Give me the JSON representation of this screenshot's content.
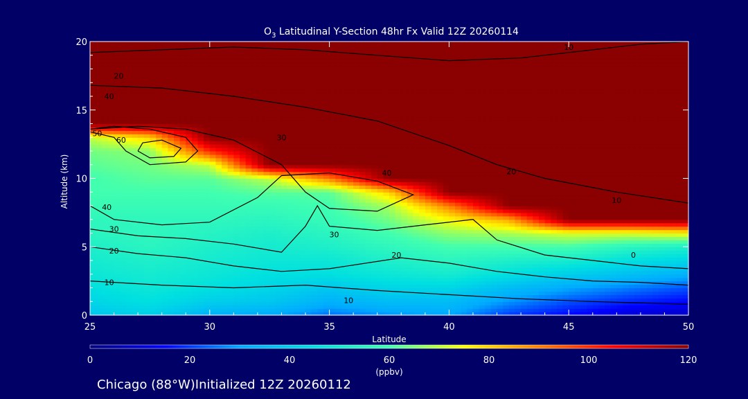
{
  "chart_data": {
    "type": "heatmap",
    "title": "O",
    "title_subscript": "3",
    "title_rest": " Latitudinal Y-Section 48hr  Fx Valid 12Z 20260114",
    "xlabel": "Latitude",
    "ylabel": "Altitude (km)",
    "xlim": [
      25,
      50
    ],
    "ylim": [
      0,
      20
    ],
    "xticks": [
      25,
      30,
      35,
      40,
      45,
      50
    ],
    "yticks": [
      0,
      5,
      10,
      15,
      20
    ],
    "colorbar": {
      "ticks": [
        0,
        20,
        40,
        60,
        80,
        100,
        120
      ],
      "min": 0,
      "max": 120,
      "unit_label": "(ppbv)",
      "colors": [
        "#000080",
        "#0000ff",
        "#00aaff",
        "#00e0e0",
        "#40ffb0",
        "#ffff00",
        "#ff8000",
        "#ff0000",
        "#8b0000"
      ]
    },
    "field": {
      "x": [
        25,
        27.5,
        30,
        32.5,
        35,
        37.5,
        40,
        42.5,
        45,
        47.5,
        50
      ],
      "y": [
        0,
        1,
        2,
        3,
        4,
        5,
        6,
        7,
        8,
        9,
        10,
        11,
        12,
        13,
        14,
        15,
        16,
        17,
        18,
        19,
        20
      ],
      "z": [
        [
          38,
          40,
          32,
          30,
          25,
          28,
          30,
          20,
          15,
          10,
          8
        ],
        [
          42,
          45,
          40,
          38,
          32,
          35,
          35,
          28,
          22,
          18,
          15
        ],
        [
          45,
          48,
          45,
          42,
          38,
          42,
          42,
          35,
          30,
          26,
          22
        ],
        [
          48,
          50,
          48,
          45,
          45,
          48,
          50,
          45,
          40,
          36,
          32
        ],
        [
          50,
          52,
          50,
          48,
          48,
          52,
          55,
          52,
          50,
          45,
          42
        ],
        [
          52,
          55,
          52,
          50,
          52,
          56,
          60,
          60,
          60,
          55,
          52
        ],
        [
          55,
          56,
          54,
          52,
          55,
          60,
          66,
          68,
          72,
          72,
          75
        ],
        [
          56,
          56,
          56,
          55,
          58,
          64,
          75,
          85,
          120,
          120,
          120
        ],
        [
          58,
          58,
          58,
          58,
          60,
          68,
          90,
          120,
          120,
          120,
          120
        ],
        [
          60,
          60,
          60,
          62,
          62,
          80,
          120,
          120,
          120,
          120,
          120
        ],
        [
          60,
          62,
          62,
          70,
          90,
          120,
          120,
          120,
          120,
          120,
          120
        ],
        [
          62,
          64,
          70,
          120,
          120,
          120,
          120,
          120,
          120,
          120,
          120
        ],
        [
          64,
          66,
          100,
          120,
          120,
          120,
          120,
          120,
          120,
          120,
          120
        ],
        [
          70,
          80,
          120,
          120,
          120,
          120,
          120,
          120,
          120,
          120,
          120
        ],
        [
          120,
          120,
          120,
          120,
          120,
          120,
          120,
          120,
          120,
          120,
          120
        ],
        [
          120,
          120,
          120,
          120,
          120,
          120,
          120,
          120,
          120,
          120,
          120
        ],
        [
          120,
          120,
          120,
          120,
          120,
          120,
          120,
          120,
          120,
          120,
          120
        ],
        [
          120,
          120,
          120,
          120,
          120,
          120,
          120,
          120,
          120,
          120,
          120
        ],
        [
          120,
          120,
          120,
          120,
          120,
          120,
          120,
          120,
          120,
          120,
          120
        ],
        [
          120,
          120,
          120,
          120,
          120,
          120,
          120,
          120,
          120,
          120,
          120
        ],
        [
          120,
          120,
          120,
          120,
          120,
          120,
          120,
          120,
          120,
          120,
          120
        ]
      ]
    },
    "contours": [
      {
        "label": "10",
        "points": [
          [
            25,
            2.5
          ],
          [
            28,
            2.2
          ],
          [
            31,
            2.0
          ],
          [
            34,
            2.2
          ],
          [
            37,
            1.8
          ],
          [
            40,
            1.5
          ],
          [
            43,
            1.2
          ],
          [
            46,
            1.0
          ],
          [
            50,
            0.8
          ]
        ]
      },
      {
        "label": "20",
        "points": [
          [
            25,
            5.0
          ],
          [
            27,
            4.5
          ],
          [
            29,
            4.2
          ],
          [
            31,
            3.6
          ],
          [
            33,
            3.2
          ],
          [
            35,
            3.4
          ],
          [
            38,
            4.2
          ],
          [
            40,
            3.8
          ],
          [
            42,
            3.2
          ],
          [
            44,
            2.8
          ],
          [
            46,
            2.5
          ],
          [
            48,
            2.4
          ],
          [
            50,
            2.2
          ]
        ]
      },
      {
        "label": "30",
        "points": [
          [
            25,
            6.3
          ],
          [
            27,
            5.8
          ],
          [
            29,
            5.6
          ],
          [
            31,
            5.2
          ],
          [
            33,
            4.6
          ],
          [
            34,
            6.5
          ],
          [
            34.5,
            8.0
          ],
          [
            35,
            6.5
          ],
          [
            37,
            6.2
          ],
          [
            39,
            6.6
          ],
          [
            41,
            7.0
          ],
          [
            42,
            5.5
          ],
          [
            44,
            4.4
          ],
          [
            46,
            4.0
          ],
          [
            48,
            3.6
          ],
          [
            50,
            3.4
          ]
        ]
      },
      {
        "label": "40",
        "points": [
          [
            25,
            8.0
          ],
          [
            26,
            7.0
          ],
          [
            28,
            6.6
          ],
          [
            30,
            6.8
          ],
          [
            32,
            8.6
          ],
          [
            33,
            10.2
          ],
          [
            35,
            10.4
          ],
          [
            37,
            9.8
          ],
          [
            38.5,
            8.8
          ],
          [
            37,
            7.6
          ],
          [
            35,
            7.8
          ],
          [
            34,
            9.0
          ],
          [
            33,
            11.0
          ],
          [
            31,
            12.8
          ],
          [
            29,
            13.6
          ],
          [
            27,
            13.8
          ],
          [
            25,
            13.6
          ]
        ]
      },
      {
        "label": "50",
        "points": [
          [
            25,
            13.4
          ],
          [
            26,
            13.0
          ],
          [
            26.5,
            12.0
          ],
          [
            27.5,
            11.0
          ],
          [
            29,
            11.2
          ],
          [
            29.5,
            12.0
          ],
          [
            29,
            13.0
          ],
          [
            27.5,
            13.6
          ],
          [
            26,
            13.8
          ],
          [
            25,
            13.6
          ]
        ]
      },
      {
        "label": "60",
        "points": [
          [
            27,
            12.0
          ],
          [
            27.5,
            11.5
          ],
          [
            28.5,
            11.6
          ],
          [
            28.8,
            12.2
          ],
          [
            28,
            12.8
          ],
          [
            27.2,
            12.6
          ],
          [
            27,
            12.0
          ]
        ]
      },
      {
        "label": "20",
        "points": [
          [
            25,
            16.8
          ],
          [
            28,
            16.6
          ],
          [
            31,
            16.0
          ],
          [
            34,
            15.2
          ],
          [
            37,
            14.2
          ],
          [
            40,
            12.4
          ],
          [
            42,
            11.0
          ],
          [
            44,
            10.0
          ],
          [
            47,
            9.0
          ],
          [
            50,
            8.2
          ]
        ]
      },
      {
        "label": "10",
        "points": [
          [
            25,
            19.2
          ],
          [
            28,
            19.4
          ],
          [
            31,
            19.6
          ],
          [
            34,
            19.4
          ],
          [
            37,
            19.0
          ],
          [
            40,
            18.6
          ],
          [
            43,
            18.8
          ],
          [
            46,
            19.4
          ],
          [
            48,
            19.8
          ],
          [
            50,
            20.0
          ]
        ]
      }
    ],
    "contour_labels": [
      {
        "text": "10",
        "x": 25.8,
        "y": 2.4
      },
      {
        "text": "10",
        "x": 35.8,
        "y": 1.1
      },
      {
        "text": "20",
        "x": 26.0,
        "y": 4.7
      },
      {
        "text": "20",
        "x": 37.8,
        "y": 4.4
      },
      {
        "text": "30",
        "x": 26.0,
        "y": 6.3
      },
      {
        "text": "30",
        "x": 35.2,
        "y": 5.9
      },
      {
        "text": "40",
        "x": 25.7,
        "y": 7.9
      },
      {
        "text": "40",
        "x": 37.4,
        "y": 10.4
      },
      {
        "text": "50",
        "x": 25.3,
        "y": 13.3
      },
      {
        "text": "60",
        "x": 26.3,
        "y": 12.8
      },
      {
        "text": "30",
        "x": 33.0,
        "y": 13.0
      },
      {
        "text": "20",
        "x": 42.6,
        "y": 10.5
      },
      {
        "text": "40",
        "x": 25.8,
        "y": 16.0
      },
      {
        "text": "20",
        "x": 26.2,
        "y": 17.5
      },
      {
        "text": "10",
        "x": 47.0,
        "y": 8.4
      },
      {
        "text": "10",
        "x": 45.0,
        "y": 19.6
      },
      {
        "text": "0",
        "x": 47.7,
        "y": 4.4
      }
    ],
    "footer": "Chicago (88°W)Initialized 12Z 20260112"
  }
}
